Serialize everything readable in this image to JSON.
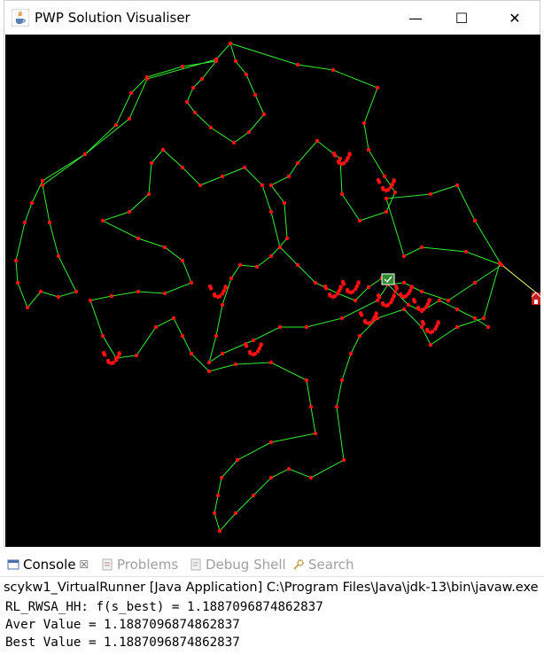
{
  "window": {
    "title": "PWP Solution Visualiser",
    "minimize_glyph": "—",
    "maximize_glyph": "☐",
    "close_glyph": "✕"
  },
  "colors": {
    "route": "#33ee33",
    "final_leg": "#ffff66",
    "node": "#ff1111",
    "canvas_bg": "#000000"
  },
  "console": {
    "tabs": [
      {
        "label": "Console",
        "icon": "console-icon",
        "active": true,
        "close": "☒"
      },
      {
        "label": "Problems",
        "icon": "problems-icon",
        "active": false
      },
      {
        "label": "Debug Shell",
        "icon": "debug-shell-icon",
        "active": false
      },
      {
        "label": "Search",
        "icon": "search-icon",
        "active": false
      }
    ],
    "launch_label": "scykw1_VirtualRunner [Java Application] C:\\Program Files\\Java\\jdk-13\\bin\\javaw.exe",
    "lines": [
      "RL_RWSA_HH: f(s_best) = 1.1887096874862837",
      "Aver Value = 1.1887096874862837",
      "Best Value = 1.1887096874862837"
    ]
  }
}
